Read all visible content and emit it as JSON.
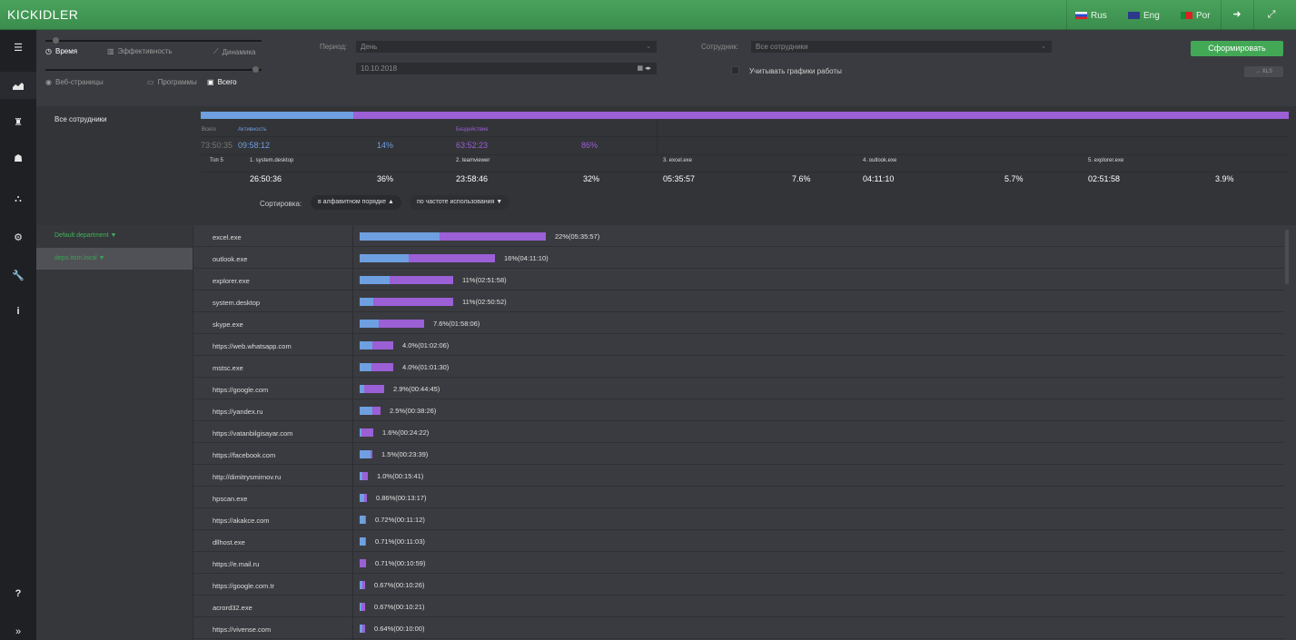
{
  "topbar": {
    "logo": "KICKIDLER",
    "langs": [
      {
        "label": "Rus",
        "flag_color": "#d22"
      },
      {
        "label": "Eng",
        "flag_color": "#335"
      },
      {
        "label": "Por",
        "flag_color": "#2a8"
      }
    ],
    "icons": [
      "logout-icon",
      "fullscreen-icon"
    ]
  },
  "sidebar": {
    "items": [
      "list-icon",
      "chart-icon",
      "agent-icon",
      "users-icon",
      "structure-icon",
      "settings-icon",
      "tools-icon",
      "info-icon"
    ],
    "bottom": [
      "help-icon",
      "expand-icon"
    ]
  },
  "filters": {
    "modes_row1": [
      {
        "label": "Время",
        "icon": "◷"
      },
      {
        "label": "Эффективность",
        "icon": "▥"
      },
      {
        "label": "Динамика",
        "icon": "⟋"
      }
    ],
    "modes_row2": [
      {
        "label": "Веб-страницы",
        "icon": "◉"
      },
      {
        "label": "Программы",
        "icon": "▭"
      },
      {
        "label": "Всего",
        "icon": "▣"
      }
    ],
    "period_label": "Период:",
    "period_value": "День",
    "date_value": "10.10.2018",
    "employee_label": "Сотрудник:",
    "employee_value": "Все сотрудники",
    "schedule_label": "Учитывать графики работы",
    "generate_button": "Сформировать",
    "xls_button": "→ XLS"
  },
  "summary": {
    "name": "Все сотрудники",
    "activity_fraction": 0.14,
    "labels": {
      "total": "Всего",
      "activity": "Активность",
      "idle": "Бездействие",
      "top5": "Топ 5"
    },
    "total": "73:50:35",
    "activity": "09:58:12",
    "activity_pct": "14%",
    "idle": "63:52:23",
    "idle_pct": "86%",
    "top5": [
      {
        "name": "1. system.desktop",
        "time": "26:50:36",
        "pct": "36%"
      },
      {
        "name": "2. teamviewer",
        "time": "23:58:46",
        "pct": "32%"
      },
      {
        "name": "3. excel.exe",
        "time": "05:35:57",
        "pct": "7.6%"
      },
      {
        "name": "4. outlook.exe",
        "time": "04:11:10",
        "pct": "5.7%"
      },
      {
        "name": "5. explorer.exe",
        "time": "02:51:58",
        "pct": "3.9%"
      }
    ],
    "sort_label": "Сортировка:",
    "sort_alpha": "в алфавитном порядке ▲",
    "sort_freq": "по частоте использования ▼"
  },
  "departments": [
    {
      "label": "Default department ▼"
    },
    {
      "label": "depo.itsm.local ▼"
    }
  ],
  "colors": {
    "activity": "#6e9fe0",
    "idle": "#9b5fd6",
    "accent": "#43a856"
  },
  "apps": [
    {
      "name": "excel.exe",
      "total_frac": 0.22,
      "act_frac": 0.43,
      "label": "22%(05:35:57)"
    },
    {
      "name": "outlook.exe",
      "total_frac": 0.16,
      "act_frac": 0.36,
      "label": "16%(04:11:10)"
    },
    {
      "name": "explorer.exe",
      "total_frac": 0.11,
      "act_frac": 0.32,
      "label": "11%(02:51:58)"
    },
    {
      "name": "system.desktop",
      "total_frac": 0.11,
      "act_frac": 0.15,
      "label": "11%(02:50:52)"
    },
    {
      "name": "skype.exe",
      "total_frac": 0.076,
      "act_frac": 0.29,
      "label": "7.6%(01:58:06)"
    },
    {
      "name": "https://web.whatsapp.com",
      "total_frac": 0.04,
      "act_frac": 0.38,
      "label": "4.0%(01:02:06)"
    },
    {
      "name": "mstsc.exe",
      "total_frac": 0.04,
      "act_frac": 0.34,
      "label": "4.0%(01:01:30)"
    },
    {
      "name": "https://google.com",
      "total_frac": 0.029,
      "act_frac": 0.2,
      "label": "2.9%(00:44:45)"
    },
    {
      "name": "https://yandex.ru",
      "total_frac": 0.025,
      "act_frac": 0.6,
      "label": "2.5%(00:38:26)"
    },
    {
      "name": "https://vatanbilgisayar.com",
      "total_frac": 0.016,
      "act_frac": 0.15,
      "label": "1.6%(00:24:22)"
    },
    {
      "name": "https://facebook.com",
      "total_frac": 0.015,
      "act_frac": 0.85,
      "label": "1.5%(00:23:39)"
    },
    {
      "name": "http://dimitrysmirnov.ru",
      "total_frac": 0.01,
      "act_frac": 0.3,
      "label": "1.0%(00:15:41)"
    },
    {
      "name": "hpscan.exe",
      "total_frac": 0.0086,
      "act_frac": 0.6,
      "label": "0.86%(00:13:17)"
    },
    {
      "name": "https://akakce.com",
      "total_frac": 0.0072,
      "act_frac": 0.8,
      "label": "0.72%(00:11:12)"
    },
    {
      "name": "dllhost.exe",
      "total_frac": 0.0071,
      "act_frac": 0.8,
      "label": "0.71%(00:11:03)"
    },
    {
      "name": "https://e.mail.ru",
      "total_frac": 0.0071,
      "act_frac": 0.0,
      "label": "0.71%(00:10:59)"
    },
    {
      "name": "https://google.com.tr",
      "total_frac": 0.0067,
      "act_frac": 0.5,
      "label": "0.67%(00:10:26)"
    },
    {
      "name": "acrord32.exe",
      "total_frac": 0.0067,
      "act_frac": 0.3,
      "label": "0.67%(00:10:21)"
    },
    {
      "name": "https://vivense.com",
      "total_frac": 0.0064,
      "act_frac": 0.5,
      "label": "0.64%(00:10:00)"
    }
  ]
}
